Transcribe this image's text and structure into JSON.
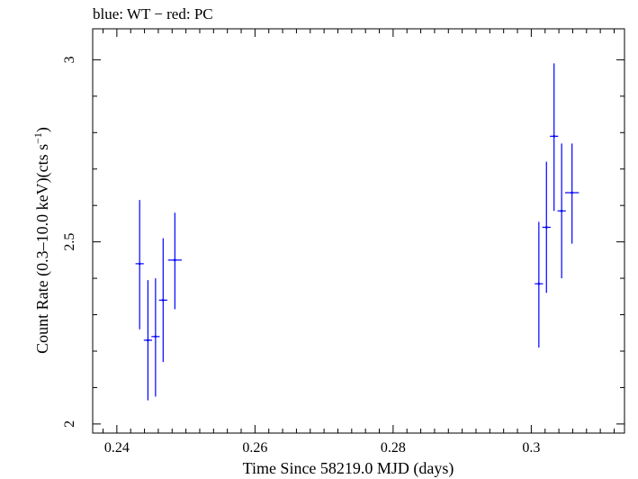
{
  "chart_data": {
    "type": "scatter",
    "title": "blue: WT − red: PC",
    "xlabel": "Time Since 58219.0 MJD (days)",
    "ylabel_main": "Count Rate (0.3–10.0 keV)(cts s",
    "ylabel_sup": "−1",
    "ylabel_tail": ")",
    "xlim": [
      0.2365,
      0.3135
    ],
    "ylim": [
      1.975,
      3.085
    ],
    "xticks": [
      0.24,
      0.26,
      0.28,
      0.3
    ],
    "xtick_labels": [
      "0.24",
      "0.26",
      "0.28",
      "0.3"
    ],
    "yticks": [
      2.0,
      2.5,
      3.0
    ],
    "ytick_labels": [
      "2",
      "2.5",
      "3"
    ],
    "series": [
      {
        "color": "#0000ff",
        "points": [
          {
            "x": 0.2433,
            "y": 2.44,
            "xerr": 0.0006,
            "ylo": 2.26,
            "yhi": 2.615
          },
          {
            "x": 0.2445,
            "y": 2.23,
            "xerr": 0.0006,
            "ylo": 2.065,
            "yhi": 2.395
          },
          {
            "x": 0.2456,
            "y": 2.24,
            "xerr": 0.0006,
            "ylo": 2.075,
            "yhi": 2.4
          },
          {
            "x": 0.2467,
            "y": 2.34,
            "xerr": 0.0006,
            "ylo": 2.17,
            "yhi": 2.51
          },
          {
            "x": 0.2484,
            "y": 2.45,
            "xerr": 0.001,
            "ylo": 2.315,
            "yhi": 2.58
          },
          {
            "x": 0.3011,
            "y": 2.385,
            "xerr": 0.0006,
            "ylo": 2.21,
            "yhi": 2.555
          },
          {
            "x": 0.3022,
            "y": 2.54,
            "xerr": 0.0006,
            "ylo": 2.36,
            "yhi": 2.72
          },
          {
            "x": 0.3033,
            "y": 2.79,
            "xerr": 0.0006,
            "ylo": 2.585,
            "yhi": 2.99
          },
          {
            "x": 0.3044,
            "y": 2.585,
            "xerr": 0.0006,
            "ylo": 2.4,
            "yhi": 2.77
          },
          {
            "x": 0.3059,
            "y": 2.635,
            "xerr": 0.001,
            "ylo": 2.495,
            "yhi": 2.77
          }
        ]
      }
    ]
  }
}
